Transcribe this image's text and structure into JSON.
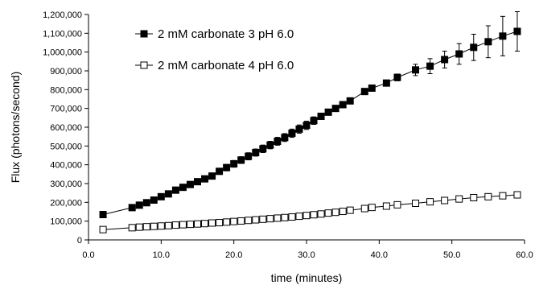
{
  "chart_data": {
    "type": "line",
    "xlabel": "time (minutes)",
    "ylabel": "Flux (photons/second)",
    "xlim": [
      0,
      60
    ],
    "ylim": [
      0,
      1200000
    ],
    "x_ticks": [
      0,
      10,
      20,
      30,
      40,
      50,
      60
    ],
    "x_tick_labels": [
      "0.0",
      "10.0",
      "20.0",
      "30.0",
      "40.0",
      "50.0",
      "60.0"
    ],
    "y_ticks": [
      0,
      100000,
      200000,
      300000,
      400000,
      500000,
      600000,
      700000,
      800000,
      900000,
      1000000,
      1100000,
      1200000
    ],
    "y_tick_labels": [
      "0",
      "100,000",
      "200,000",
      "300,000",
      "400,000",
      "500,000",
      "600,000",
      "700,000",
      "800,000",
      "900,000",
      "1,000,000",
      "1,100,000",
      "1,200,000"
    ],
    "grid": false,
    "legend_position": "top-left",
    "series": [
      {
        "name": "2 mM carbonate 3 pH 6.0",
        "marker": "filled-square",
        "color": "#000000",
        "x": [
          2,
          6,
          7,
          8,
          9,
          10,
          11,
          12,
          13,
          14,
          15,
          16,
          17,
          18,
          19,
          20,
          21,
          22,
          23,
          24,
          25,
          26,
          27,
          28,
          29,
          30,
          31,
          32,
          33,
          34,
          35,
          36,
          38,
          39,
          41,
          42.5,
          45,
          47,
          49,
          51,
          53,
          55,
          57,
          59
        ],
        "y": [
          135000,
          172000,
          185000,
          198000,
          212000,
          230000,
          245000,
          265000,
          280000,
          295000,
          310000,
          325000,
          340000,
          365000,
          385000,
          405000,
          425000,
          445000,
          465000,
          485000,
          505000,
          525000,
          545000,
          568000,
          590000,
          610000,
          635000,
          658000,
          680000,
          700000,
          720000,
          740000,
          790000,
          808000,
          835000,
          865000,
          905000,
          925000,
          960000,
          990000,
          1025000,
          1055000,
          1085000,
          1110000
        ],
        "error": [
          8000,
          8000,
          8000,
          8000,
          9000,
          9000,
          10000,
          10000,
          11000,
          11000,
          12000,
          12000,
          13000,
          15000,
          17000,
          18000,
          18000,
          19000,
          19000,
          20000,
          20000,
          21000,
          21000,
          22000,
          22000,
          22000,
          20000,
          15000,
          12000,
          10000,
          9000,
          9000,
          8000,
          10000,
          12000,
          18000,
          30000,
          40000,
          45000,
          55000,
          70000,
          85000,
          105000,
          105000
        ]
      },
      {
        "name": "2 mM carbonate 4 pH 6.0",
        "marker": "open-square",
        "color": "#000000",
        "x": [
          2,
          6,
          7,
          8,
          9,
          10,
          11,
          12,
          13,
          14,
          15,
          16,
          17,
          18,
          19,
          20,
          21,
          22,
          23,
          24,
          25,
          26,
          27,
          28,
          29,
          30,
          31,
          32,
          33,
          34,
          35,
          36,
          38,
          39,
          41,
          42.5,
          45,
          47,
          49,
          51,
          53,
          55,
          57,
          59
        ],
        "y": [
          55000,
          65000,
          68000,
          70000,
          72000,
          74000,
          76000,
          79000,
          81000,
          83000,
          85000,
          87000,
          90000,
          92000,
          95000,
          98000,
          101000,
          104000,
          107000,
          110000,
          113000,
          116000,
          119000,
          122000,
          126000,
          130000,
          134000,
          138000,
          143000,
          147000,
          152000,
          158000,
          167000,
          173000,
          180000,
          187000,
          195000,
          203000,
          210000,
          218000,
          225000,
          230000,
          235000,
          240000
        ],
        "error": [
          6000,
          6000,
          6000,
          6000,
          6000,
          6000,
          6000,
          6000,
          6000,
          6000,
          6000,
          6000,
          6000,
          6000,
          6000,
          6000,
          6000,
          6000,
          6000,
          6000,
          6000,
          6000,
          6000,
          6000,
          6000,
          6000,
          6000,
          6000,
          6000,
          6000,
          6000,
          6000,
          7000,
          7000,
          7000,
          7000,
          8000,
          8000,
          9000,
          9000,
          10000,
          10000,
          12000,
          14000
        ]
      }
    ]
  }
}
